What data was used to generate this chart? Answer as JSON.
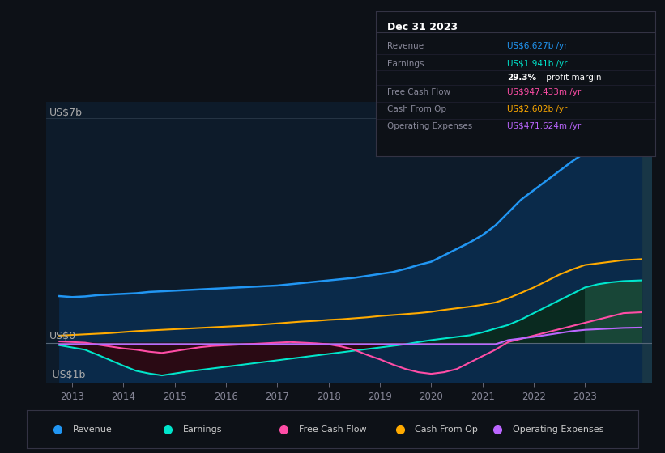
{
  "background_color": "#0d1117",
  "chart_bg_color": "#0d1b2a",
  "highlight_color": "#1a3a4a",
  "ylabel_top": "US$7b",
  "ylabel_zero": "US$0",
  "ylabel_neg": "-US$1b",
  "xlim_start": 2012.5,
  "xlim_end": 2024.3,
  "ylim_min": -1.25,
  "ylim_max": 7.5,
  "xticks": [
    2013,
    2014,
    2015,
    2016,
    2017,
    2018,
    2019,
    2020,
    2021,
    2022,
    2023
  ],
  "highlight_start": 2022.8,
  "years": [
    2012.75,
    2013.0,
    2013.25,
    2013.5,
    2013.75,
    2014.0,
    2014.25,
    2014.5,
    2014.75,
    2015.0,
    2015.25,
    2015.5,
    2015.75,
    2016.0,
    2016.25,
    2016.5,
    2016.75,
    2017.0,
    2017.25,
    2017.5,
    2017.75,
    2018.0,
    2018.25,
    2018.5,
    2018.75,
    2019.0,
    2019.25,
    2019.5,
    2019.75,
    2020.0,
    2020.25,
    2020.5,
    2020.75,
    2021.0,
    2021.25,
    2021.5,
    2021.75,
    2022.0,
    2022.25,
    2022.5,
    2022.75,
    2023.0,
    2023.25,
    2023.5,
    2023.75,
    2024.1
  ],
  "revenue": [
    1.45,
    1.42,
    1.44,
    1.48,
    1.5,
    1.52,
    1.54,
    1.58,
    1.6,
    1.62,
    1.64,
    1.66,
    1.68,
    1.7,
    1.72,
    1.74,
    1.76,
    1.78,
    1.82,
    1.86,
    1.9,
    1.94,
    1.98,
    2.02,
    2.08,
    2.14,
    2.2,
    2.3,
    2.42,
    2.52,
    2.72,
    2.92,
    3.12,
    3.35,
    3.65,
    4.05,
    4.45,
    4.75,
    5.05,
    5.35,
    5.65,
    5.92,
    6.12,
    6.32,
    6.52,
    6.627
  ],
  "earnings": [
    -0.08,
    -0.15,
    -0.22,
    -0.38,
    -0.55,
    -0.72,
    -0.88,
    -0.96,
    -1.02,
    -0.96,
    -0.9,
    -0.85,
    -0.8,
    -0.75,
    -0.7,
    -0.65,
    -0.6,
    -0.55,
    -0.5,
    -0.45,
    -0.4,
    -0.35,
    -0.3,
    -0.25,
    -0.2,
    -0.15,
    -0.1,
    -0.05,
    0.02,
    0.08,
    0.13,
    0.18,
    0.23,
    0.32,
    0.44,
    0.55,
    0.72,
    0.92,
    1.12,
    1.32,
    1.52,
    1.72,
    1.82,
    1.88,
    1.92,
    1.941
  ],
  "free_cash_flow": [
    0.04,
    0.02,
    0.0,
    -0.06,
    -0.12,
    -0.18,
    -0.22,
    -0.28,
    -0.32,
    -0.26,
    -0.2,
    -0.14,
    -0.1,
    -0.08,
    -0.06,
    -0.04,
    -0.02,
    0.0,
    0.02,
    0.0,
    -0.02,
    -0.05,
    -0.12,
    -0.22,
    -0.38,
    -0.52,
    -0.68,
    -0.82,
    -0.92,
    -0.97,
    -0.92,
    -0.82,
    -0.62,
    -0.42,
    -0.22,
    0.02,
    0.12,
    0.22,
    0.32,
    0.42,
    0.52,
    0.62,
    0.72,
    0.82,
    0.92,
    0.947
  ],
  "cash_from_op": [
    0.22,
    0.24,
    0.26,
    0.28,
    0.3,
    0.33,
    0.36,
    0.38,
    0.4,
    0.42,
    0.44,
    0.46,
    0.48,
    0.5,
    0.52,
    0.54,
    0.57,
    0.6,
    0.63,
    0.66,
    0.68,
    0.71,
    0.73,
    0.76,
    0.79,
    0.83,
    0.86,
    0.89,
    0.92,
    0.96,
    1.02,
    1.07,
    1.12,
    1.18,
    1.25,
    1.38,
    1.55,
    1.72,
    1.92,
    2.12,
    2.28,
    2.42,
    2.47,
    2.52,
    2.57,
    2.602
  ],
  "op_expenses": [
    -0.05,
    -0.05,
    -0.05,
    -0.05,
    -0.05,
    -0.05,
    -0.05,
    -0.05,
    -0.05,
    -0.05,
    -0.05,
    -0.05,
    -0.05,
    -0.05,
    -0.05,
    -0.05,
    -0.05,
    -0.05,
    -0.05,
    -0.05,
    -0.05,
    -0.05,
    -0.05,
    -0.05,
    -0.05,
    -0.05,
    -0.05,
    -0.05,
    -0.05,
    -0.05,
    -0.05,
    -0.05,
    -0.05,
    -0.05,
    -0.05,
    0.08,
    0.13,
    0.18,
    0.24,
    0.3,
    0.36,
    0.4,
    0.42,
    0.44,
    0.46,
    0.4716
  ],
  "revenue_color": "#2196f3",
  "earnings_color": "#00e5cc",
  "free_cash_flow_color": "#ff4da6",
  "cash_from_op_color": "#ffaa00",
  "op_expenses_color": "#bb66ff",
  "revenue_fill_color": "#0a2a4a",
  "earnings_fill_below_color": "#2a0a14",
  "earnings_fill_above_color": "#0a2a20",
  "earnings_highlight_fill": "#1a4a3a",
  "info_box": {
    "title": "Dec 31 2023",
    "rows": [
      {
        "label": "Revenue",
        "value": "US$6.627b /yr",
        "value_color": "#2196f3"
      },
      {
        "label": "Earnings",
        "value": "US$1.941b /yr",
        "value_color": "#00e5cc"
      },
      {
        "label": "",
        "bold_part": "29.3%",
        "rest": " profit margin",
        "value_color": "#ffffff"
      },
      {
        "label": "Free Cash Flow",
        "value": "US$947.433m /yr",
        "value_color": "#ff4da6"
      },
      {
        "label": "Cash From Op",
        "value": "US$2.602b /yr",
        "value_color": "#ffaa00"
      },
      {
        "label": "Operating Expenses",
        "value": "US$471.624m /yr",
        "value_color": "#bb66ff"
      }
    ]
  },
  "legend_items": [
    {
      "label": "Revenue",
      "color": "#2196f3"
    },
    {
      "label": "Earnings",
      "color": "#00e5cc"
    },
    {
      "label": "Free Cash Flow",
      "color": "#ff4da6"
    },
    {
      "label": "Cash From Op",
      "color": "#ffaa00"
    },
    {
      "label": "Operating Expenses",
      "color": "#bb66ff"
    }
  ]
}
